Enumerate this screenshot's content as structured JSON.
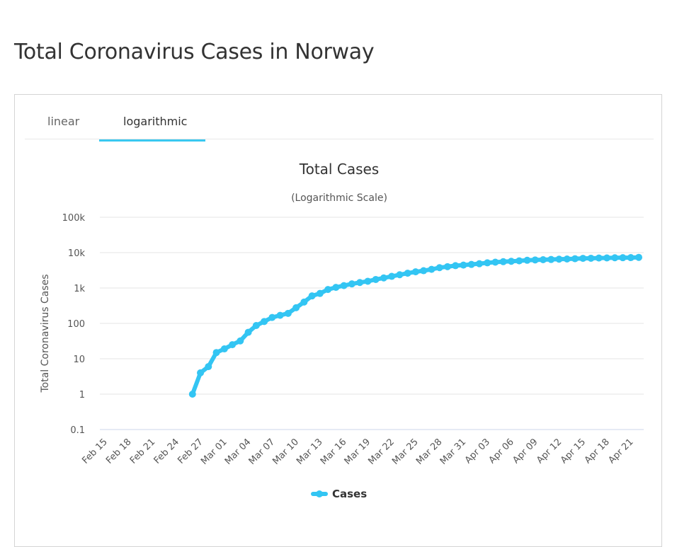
{
  "page": {
    "title": "Total Coronavirus Cases in Norway"
  },
  "tabs": [
    {
      "label": "linear",
      "active": false
    },
    {
      "label": "logarithmic",
      "active": true
    }
  ],
  "chart_data": {
    "type": "line",
    "title": "Total Cases",
    "subtitle": "(Logarithmic Scale)",
    "xlabel": "",
    "ylabel": "Total Coronavirus Cases",
    "scale": "log",
    "ylim": [
      0.1,
      100000
    ],
    "yticks": [
      {
        "value": 0.1,
        "label": "0.1"
      },
      {
        "value": 1,
        "label": "1"
      },
      {
        "value": 10,
        "label": "10"
      },
      {
        "value": 100,
        "label": "100"
      },
      {
        "value": 1000,
        "label": "1k"
      },
      {
        "value": 10000,
        "label": "10k"
      },
      {
        "value": 100000,
        "label": "100k"
      }
    ],
    "categories": [
      "Feb 15",
      "Feb 16",
      "Feb 17",
      "Feb 18",
      "Feb 19",
      "Feb 20",
      "Feb 21",
      "Feb 22",
      "Feb 23",
      "Feb 24",
      "Feb 25",
      "Feb 26",
      "Feb 27",
      "Feb 28",
      "Feb 29",
      "Mar 01",
      "Mar 02",
      "Mar 03",
      "Mar 04",
      "Mar 05",
      "Mar 06",
      "Mar 07",
      "Mar 08",
      "Mar 09",
      "Mar 10",
      "Mar 11",
      "Mar 12",
      "Mar 13",
      "Mar 14",
      "Mar 15",
      "Mar 16",
      "Mar 17",
      "Mar 18",
      "Mar 19",
      "Mar 20",
      "Mar 21",
      "Mar 22",
      "Mar 23",
      "Mar 24",
      "Mar 25",
      "Mar 26",
      "Mar 27",
      "Mar 28",
      "Mar 29",
      "Mar 30",
      "Mar 31",
      "Apr 01",
      "Apr 02",
      "Apr 03",
      "Apr 04",
      "Apr 05",
      "Apr 06",
      "Apr 07",
      "Apr 08",
      "Apr 09",
      "Apr 10",
      "Apr 11",
      "Apr 12",
      "Apr 13",
      "Apr 14",
      "Apr 15",
      "Apr 16",
      "Apr 17",
      "Apr 18",
      "Apr 19",
      "Apr 20",
      "Apr 21",
      "Apr 22"
    ],
    "xtick_every": 3,
    "series": [
      {
        "name": "Cases",
        "color": "#33c5f3",
        "values": [
          null,
          null,
          null,
          null,
          null,
          null,
          null,
          null,
          null,
          null,
          null,
          1,
          4,
          6,
          15,
          19,
          25,
          32,
          56,
          87,
          113,
          147,
          169,
          192,
          277,
          400,
          598,
          702,
          907,
          1042,
          1169,
          1308,
          1428,
          1552,
          1742,
          1926,
          2132,
          2371,
          2621,
          2866,
          3084,
          3369,
          3755,
          4015,
          4284,
          4445,
          4641,
          4863,
          5147,
          5370,
          5550,
          5687,
          5865,
          6086,
          6211,
          6314,
          6409,
          6525,
          6603,
          6740,
          6896,
          6937,
          7035,
          7078,
          7156,
          7191,
          7225,
          7338
        ]
      }
    ],
    "legend": {
      "position": "bottom-center"
    },
    "grid": true
  }
}
